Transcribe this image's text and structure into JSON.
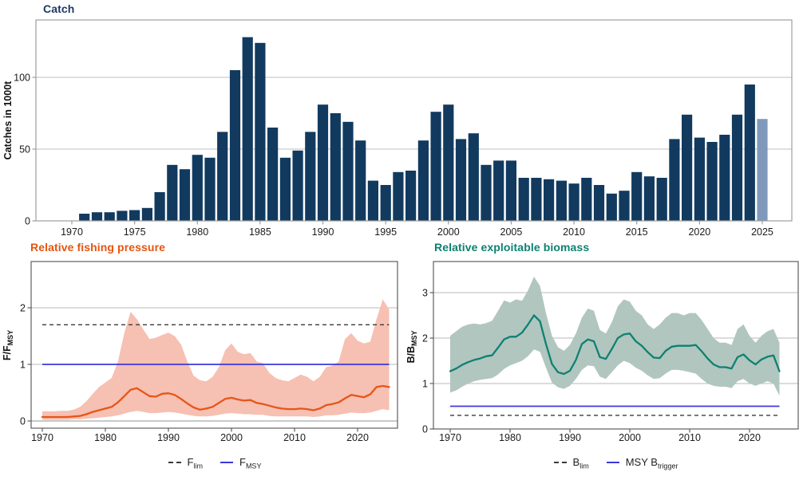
{
  "chart_data": [
    {
      "type": "bar",
      "title": "Catch",
      "ylabel": "Catches in 1000t",
      "x": [
        1971,
        1972,
        1973,
        1974,
        1975,
        1976,
        1977,
        1978,
        1979,
        1980,
        1981,
        1982,
        1983,
        1984,
        1985,
        1986,
        1987,
        1988,
        1989,
        1990,
        1991,
        1992,
        1993,
        1994,
        1995,
        1996,
        1997,
        1998,
        1999,
        2000,
        2001,
        2002,
        2003,
        2004,
        2005,
        2006,
        2007,
        2008,
        2009,
        2010,
        2011,
        2012,
        2013,
        2014,
        2015,
        2016,
        2017,
        2018,
        2019,
        2020,
        2021,
        2022,
        2023,
        2024,
        2025
      ],
      "values": [
        5,
        6,
        6,
        7,
        7.5,
        9,
        20,
        39,
        36,
        46,
        44,
        62,
        105,
        128,
        124,
        65,
        44,
        49,
        62,
        81,
        75,
        69,
        56,
        28,
        25,
        34,
        35,
        56,
        76,
        81,
        57,
        61,
        39,
        42,
        42,
        30,
        30,
        29,
        28,
        26,
        30,
        25,
        19,
        21,
        34,
        31,
        30,
        57,
        74,
        58,
        55,
        60,
        74,
        95,
        71
      ],
      "projected_final_year": true,
      "x_ticks": [
        1970,
        1975,
        1980,
        1985,
        1990,
        1995,
        2000,
        2005,
        2010,
        2015,
        2020,
        2025
      ],
      "y_ticks": [
        0,
        50,
        100
      ],
      "ylim": [
        0,
        140
      ],
      "grid": true,
      "bar_color": "#123a5f",
      "projected_bar_color": "#8099ba",
      "title_color": "#1f3864"
    },
    {
      "type": "line",
      "title": "Relative fishing pressure",
      "ylabel_base": "F/F",
      "ylabel_sub": "MSY",
      "x": [
        1970,
        1971,
        1972,
        1973,
        1974,
        1975,
        1976,
        1977,
        1978,
        1979,
        1980,
        1981,
        1982,
        1983,
        1984,
        1985,
        1986,
        1987,
        1988,
        1989,
        1990,
        1991,
        1992,
        1993,
        1994,
        1995,
        1996,
        1997,
        1998,
        1999,
        2000,
        2001,
        2002,
        2003,
        2004,
        2005,
        2006,
        2007,
        2008,
        2009,
        2010,
        2011,
        2012,
        2013,
        2014,
        2015,
        2016,
        2017,
        2018,
        2019,
        2020,
        2021,
        2022,
        2023,
        2024,
        2025
      ],
      "series": [
        {
          "name": "F/FMSY median",
          "color": "#e65518",
          "values": [
            0.07,
            0.07,
            0.07,
            0.07,
            0.07,
            0.08,
            0.09,
            0.12,
            0.16,
            0.19,
            0.22,
            0.25,
            0.33,
            0.44,
            0.55,
            0.58,
            0.51,
            0.44,
            0.43,
            0.48,
            0.49,
            0.46,
            0.39,
            0.31,
            0.24,
            0.2,
            0.22,
            0.25,
            0.32,
            0.39,
            0.41,
            0.38,
            0.36,
            0.37,
            0.32,
            0.3,
            0.27,
            0.24,
            0.22,
            0.21,
            0.21,
            0.22,
            0.21,
            0.19,
            0.22,
            0.28,
            0.3,
            0.33,
            0.4,
            0.46,
            0.44,
            0.42,
            0.47,
            0.6,
            0.62,
            0.6
          ]
        },
        {
          "name": "confidence upper",
          "values": [
            0.17,
            0.17,
            0.17,
            0.18,
            0.18,
            0.2,
            0.25,
            0.35,
            0.48,
            0.6,
            0.68,
            0.76,
            1.05,
            1.55,
            1.93,
            1.8,
            1.62,
            1.45,
            1.47,
            1.52,
            1.56,
            1.5,
            1.35,
            1.05,
            0.8,
            0.72,
            0.7,
            0.78,
            0.95,
            1.25,
            1.37,
            1.22,
            1.18,
            1.2,
            1.05,
            1.02,
            0.85,
            0.76,
            0.72,
            0.7,
            0.76,
            0.82,
            0.78,
            0.7,
            0.78,
            0.95,
            0.98,
            1.05,
            1.45,
            1.55,
            1.42,
            1.37,
            1.4,
            1.8,
            2.15,
            1.97
          ]
        },
        {
          "name": "confidence lower",
          "values": [
            0.02,
            0.02,
            0.02,
            0.02,
            0.02,
            0.03,
            0.03,
            0.04,
            0.05,
            0.06,
            0.07,
            0.08,
            0.1,
            0.13,
            0.16,
            0.18,
            0.16,
            0.14,
            0.14,
            0.15,
            0.16,
            0.15,
            0.13,
            0.11,
            0.09,
            0.08,
            0.08,
            0.09,
            0.11,
            0.13,
            0.14,
            0.13,
            0.12,
            0.12,
            0.11,
            0.11,
            0.09,
            0.08,
            0.08,
            0.08,
            0.08,
            0.08,
            0.08,
            0.07,
            0.08,
            0.1,
            0.1,
            0.11,
            0.13,
            0.15,
            0.14,
            0.14,
            0.15,
            0.18,
            0.21,
            0.19
          ]
        }
      ],
      "band_color": "#f6c0b2",
      "reference_lines": [
        {
          "name": "F_lim",
          "value": 1.7,
          "style": "dashed",
          "color": "#3a3a3a"
        },
        {
          "name": "F_MSY",
          "value": 1.0,
          "style": "solid",
          "color": "#3c38dd"
        }
      ],
      "legend": [
        {
          "base": "F",
          "sub": "lim",
          "symbol": "dashed"
        },
        {
          "base": "F",
          "sub": "MSY",
          "symbol": "solid"
        }
      ],
      "x_ticks": [
        1970,
        1980,
        1990,
        2000,
        2010,
        2020
      ],
      "y_ticks": [
        0,
        1,
        2
      ],
      "ylim": [
        -0.13,
        2.82
      ],
      "grid": true,
      "title_color": "#e5540f"
    },
    {
      "type": "line",
      "title": "Relative exploitable biomass",
      "ylabel_base": "B/B",
      "ylabel_sub": "MSY",
      "x": [
        1970,
        1971,
        1972,
        1973,
        1974,
        1975,
        1976,
        1977,
        1978,
        1979,
        1980,
        1981,
        1982,
        1983,
        1984,
        1985,
        1986,
        1987,
        1988,
        1989,
        1990,
        1991,
        1992,
        1993,
        1994,
        1995,
        1996,
        1997,
        1998,
        1999,
        2000,
        2001,
        2002,
        2003,
        2004,
        2005,
        2006,
        2007,
        2008,
        2009,
        2010,
        2011,
        2012,
        2013,
        2014,
        2015,
        2016,
        2017,
        2018,
        2019,
        2020,
        2021,
        2022,
        2023,
        2024,
        2025
      ],
      "series": [
        {
          "name": "B/BMSY median",
          "color": "#0e8173",
          "values": [
            1.27,
            1.33,
            1.41,
            1.47,
            1.52,
            1.55,
            1.6,
            1.62,
            1.79,
            1.97,
            2.03,
            2.03,
            2.12,
            2.3,
            2.5,
            2.37,
            1.87,
            1.43,
            1.25,
            1.21,
            1.28,
            1.52,
            1.87,
            1.97,
            1.93,
            1.58,
            1.54,
            1.76,
            2.0,
            2.08,
            2.1,
            1.93,
            1.83,
            1.69,
            1.57,
            1.56,
            1.72,
            1.81,
            1.83,
            1.83,
            1.83,
            1.85,
            1.71,
            1.55,
            1.42,
            1.36,
            1.36,
            1.33,
            1.58,
            1.64,
            1.51,
            1.42,
            1.53,
            1.59,
            1.62,
            1.27
          ]
        },
        {
          "name": "confidence upper",
          "values": [
            2.05,
            2.15,
            2.25,
            2.3,
            2.32,
            2.3,
            2.33,
            2.38,
            2.6,
            2.83,
            2.78,
            2.85,
            2.82,
            3.05,
            3.35,
            3.15,
            2.55,
            2.05,
            1.8,
            1.72,
            1.85,
            2.1,
            2.45,
            2.65,
            2.6,
            2.18,
            2.1,
            2.35,
            2.7,
            2.85,
            2.8,
            2.6,
            2.5,
            2.3,
            2.2,
            2.3,
            2.45,
            2.55,
            2.55,
            2.5,
            2.55,
            2.55,
            2.4,
            2.2,
            2.0,
            1.9,
            1.9,
            1.85,
            2.2,
            2.3,
            2.05,
            1.9,
            2.05,
            2.15,
            2.2,
            1.9
          ]
        },
        {
          "name": "confidence lower",
          "values": [
            0.8,
            0.85,
            0.93,
            1.0,
            1.05,
            1.08,
            1.1,
            1.12,
            1.2,
            1.32,
            1.4,
            1.45,
            1.5,
            1.6,
            1.75,
            1.7,
            1.35,
            1.02,
            0.92,
            0.88,
            0.95,
            1.1,
            1.3,
            1.4,
            1.38,
            1.15,
            1.1,
            1.25,
            1.4,
            1.5,
            1.45,
            1.35,
            1.28,
            1.18,
            1.1,
            1.12,
            1.22,
            1.3,
            1.3,
            1.28,
            1.25,
            1.22,
            1.1,
            1.0,
            0.95,
            0.93,
            0.93,
            0.9,
            1.05,
            1.1,
            1.0,
            0.95,
            1.0,
            1.05,
            1.0,
            0.73
          ]
        }
      ],
      "band_color": "#b1c6be",
      "reference_lines": [
        {
          "name": "B_lim",
          "value": 0.3,
          "style": "dashed",
          "color": "#3a3a3a"
        },
        {
          "name": "MSY_B_trigger",
          "value": 0.5,
          "style": "solid",
          "color": "#3c38dd"
        }
      ],
      "legend": [
        {
          "base": "B",
          "sub": "lim",
          "symbol": "dashed"
        },
        {
          "base": "MSY B",
          "sub": "trigger",
          "symbol": "solid"
        }
      ],
      "x_ticks": [
        1970,
        1980,
        1990,
        2000,
        2010,
        2020
      ],
      "y_ticks": [
        0,
        1,
        2,
        3
      ],
      "ylim": [
        0,
        3.68
      ],
      "grid": true,
      "title_color": "#0d8170"
    }
  ]
}
